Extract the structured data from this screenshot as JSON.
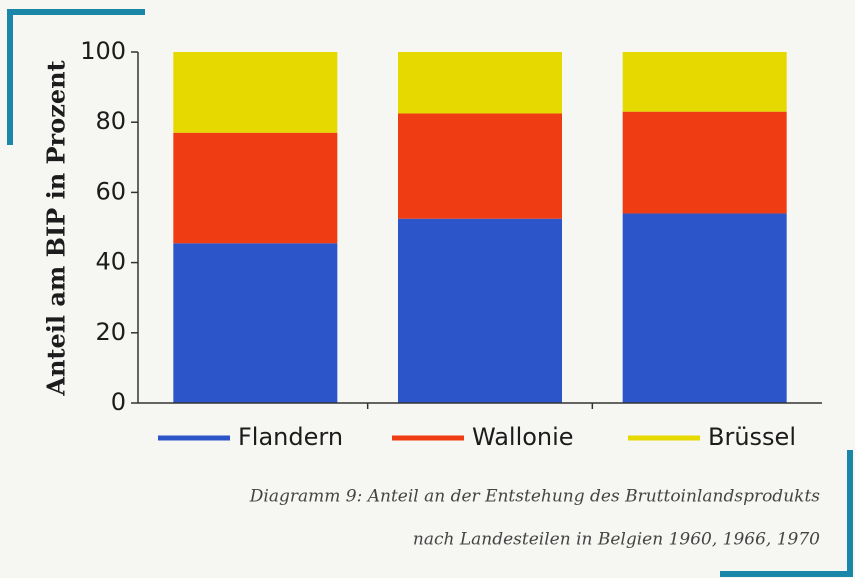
{
  "chart_data": {
    "type": "stacked_bar",
    "y_label": "Anteil am BIP in Prozent",
    "categories": [
      null,
      null,
      null
    ],
    "series": [
      {
        "name": "Flandern",
        "color": "#2b55c9",
        "values": [
          45.5,
          52.5,
          54
        ]
      },
      {
        "name": "Wallonie",
        "color": "#f03c12",
        "values": [
          31.5,
          30,
          29
        ]
      },
      {
        "name": "Brüssel",
        "color": "#e5d900",
        "values": [
          23,
          17.5,
          17
        ]
      }
    ],
    "ylim": [
      0,
      100
    ],
    "yticks": [
      0,
      20,
      40,
      60,
      80,
      100
    ],
    "caption": [
      "Diagramm 9: Anteil an der Entstehung des Bruttoinlandsprodukts",
      "nach Landesteilen in Belgien 1960, 1966, 1970"
    ]
  }
}
